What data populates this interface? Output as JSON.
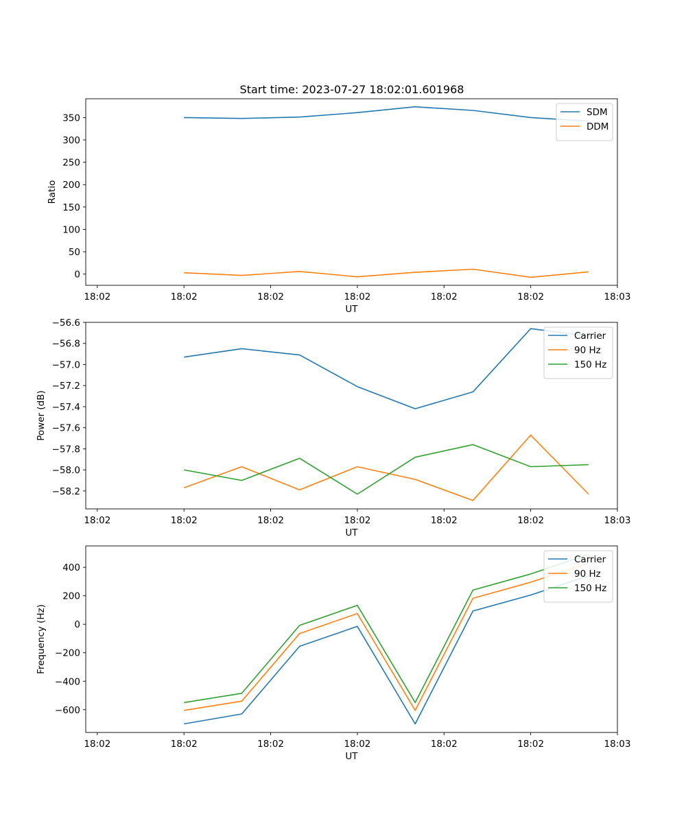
{
  "figure_title": "Start time: 2023-07-27 18:02:01.601968",
  "colors": {
    "blue": "#1f77b4",
    "orange": "#ff7f0e",
    "green": "#2ca02c"
  },
  "chart_data": [
    {
      "type": "line",
      "title": "Start time: 2023-07-27 18:02:01.601968",
      "xlabel": "UT",
      "ylabel": "Ratio",
      "x": [
        1,
        2,
        3,
        4,
        5,
        6,
        7,
        8
      ],
      "xlim": [
        -0.7,
        8.5
      ],
      "xticks": [
        -0.5,
        1,
        2.5,
        4,
        5.5,
        7,
        8.5
      ],
      "xtick_labels": [
        "18:02",
        "18:02",
        "18:02",
        "18:02",
        "18:02",
        "18:02",
        "18:03"
      ],
      "ylim": [
        -25,
        392
      ],
      "yticks": [
        0,
        50,
        100,
        150,
        200,
        250,
        300,
        350
      ],
      "ytick_labels": [
        "0",
        "50",
        "100",
        "150",
        "200",
        "250",
        "300",
        "350"
      ],
      "legend_position": "top-right",
      "series": [
        {
          "name": "SDM",
          "color": "#1f77b4",
          "values": [
            350,
            348,
            351,
            361,
            374,
            366,
            350,
            342
          ]
        },
        {
          "name": "DDM",
          "color": "#ff7f0e",
          "values": [
            3,
            -3,
            6,
            -6,
            4,
            11,
            -7,
            5
          ]
        }
      ]
    },
    {
      "type": "line",
      "title": "",
      "xlabel": "UT",
      "ylabel": "Power (dB)",
      "x": [
        1,
        2,
        3,
        4,
        5,
        6,
        7,
        8
      ],
      "xlim": [
        -0.7,
        8.5
      ],
      "xticks": [
        -0.5,
        1,
        2.5,
        4,
        5.5,
        7,
        8.5
      ],
      "xtick_labels": [
        "18:02",
        "18:02",
        "18:02",
        "18:02",
        "18:02",
        "18:02",
        "18:03"
      ],
      "ylim": [
        -58.37,
        -56.6
      ],
      "yticks": [
        -58.2,
        -58.0,
        -57.8,
        -57.6,
        -57.4,
        -57.2,
        -57.0,
        -56.8,
        -56.6
      ],
      "ytick_labels": [
        "−58.2",
        "−58.0",
        "−57.8",
        "−57.6",
        "−57.4",
        "−57.2",
        "−57.0",
        "−56.8",
        "−56.6"
      ],
      "legend_position": "top-right",
      "series": [
        {
          "name": "Carrier",
          "color": "#1f77b4",
          "values": [
            -56.93,
            -56.85,
            -56.91,
            -57.21,
            -57.42,
            -57.26,
            -56.66,
            -56.73
          ]
        },
        {
          "name": "90 Hz",
          "color": "#ff7f0e",
          "values": [
            -58.17,
            -57.97,
            -58.19,
            -57.97,
            -58.09,
            -58.29,
            -57.67,
            -58.23
          ]
        },
        {
          "name": "150 Hz",
          "color": "#2ca02c",
          "values": [
            -58.0,
            -58.1,
            -57.89,
            -58.23,
            -57.88,
            -57.76,
            -57.97,
            -57.95
          ]
        }
      ]
    },
    {
      "type": "line",
      "title": "",
      "xlabel": "UT",
      "ylabel": "Frequency (Hz)",
      "x": [
        1,
        2,
        3,
        4,
        5,
        6,
        7,
        8
      ],
      "xlim": [
        -0.7,
        8.5
      ],
      "xticks": [
        -0.5,
        1,
        2.5,
        4,
        5.5,
        7,
        8.5
      ],
      "xtick_labels": [
        "18:02",
        "18:02",
        "18:02",
        "18:02",
        "18:02",
        "18:02",
        "18:03"
      ],
      "ylim": [
        -760,
        550
      ],
      "yticks": [
        -600,
        -400,
        -200,
        0,
        200,
        400
      ],
      "ytick_labels": [
        "−600",
        "−400",
        "−200",
        "0",
        "200",
        "400"
      ],
      "legend_position": "top-right",
      "series": [
        {
          "name": "Carrier",
          "color": "#1f77b4",
          "values": [
            -700,
            -630,
            -155,
            -15,
            -700,
            93,
            205,
            340
          ]
        },
        {
          "name": "90 Hz",
          "color": "#ff7f0e",
          "values": [
            -605,
            -540,
            -65,
            75,
            -605,
            182,
            295,
            430
          ]
        },
        {
          "name": "150 Hz",
          "color": "#2ca02c",
          "values": [
            -550,
            -485,
            -8,
            133,
            -550,
            240,
            353,
            490
          ]
        }
      ]
    }
  ]
}
